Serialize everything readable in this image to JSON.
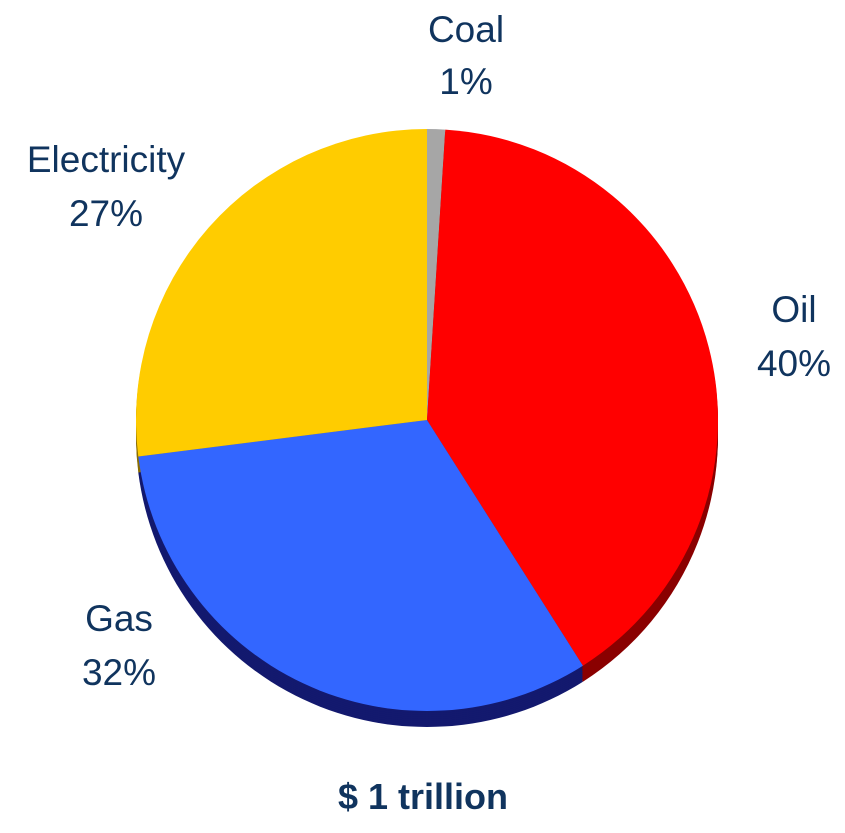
{
  "chart_data": {
    "type": "pie",
    "slices": [
      {
        "name": "Coal",
        "value": 1,
        "value_label": "1%",
        "color": "#a6a6a6",
        "side_color": "#5a5a5a"
      },
      {
        "name": "Oil",
        "value": 40,
        "value_label": "40%",
        "color": "#ff0000",
        "side_color": "#8a0000"
      },
      {
        "name": "Gas",
        "value": 32,
        "value_label": "32%",
        "color": "#3366ff",
        "side_color": "#13196e"
      },
      {
        "name": "Electricity",
        "value": 27,
        "value_label": "27%",
        "color": "#ffcc00",
        "side_color": "#8a6d00"
      }
    ],
    "total_label": "$ 1 trillion",
    "start_angle_deg": 0,
    "direction": "clockwise",
    "legend": "none"
  }
}
